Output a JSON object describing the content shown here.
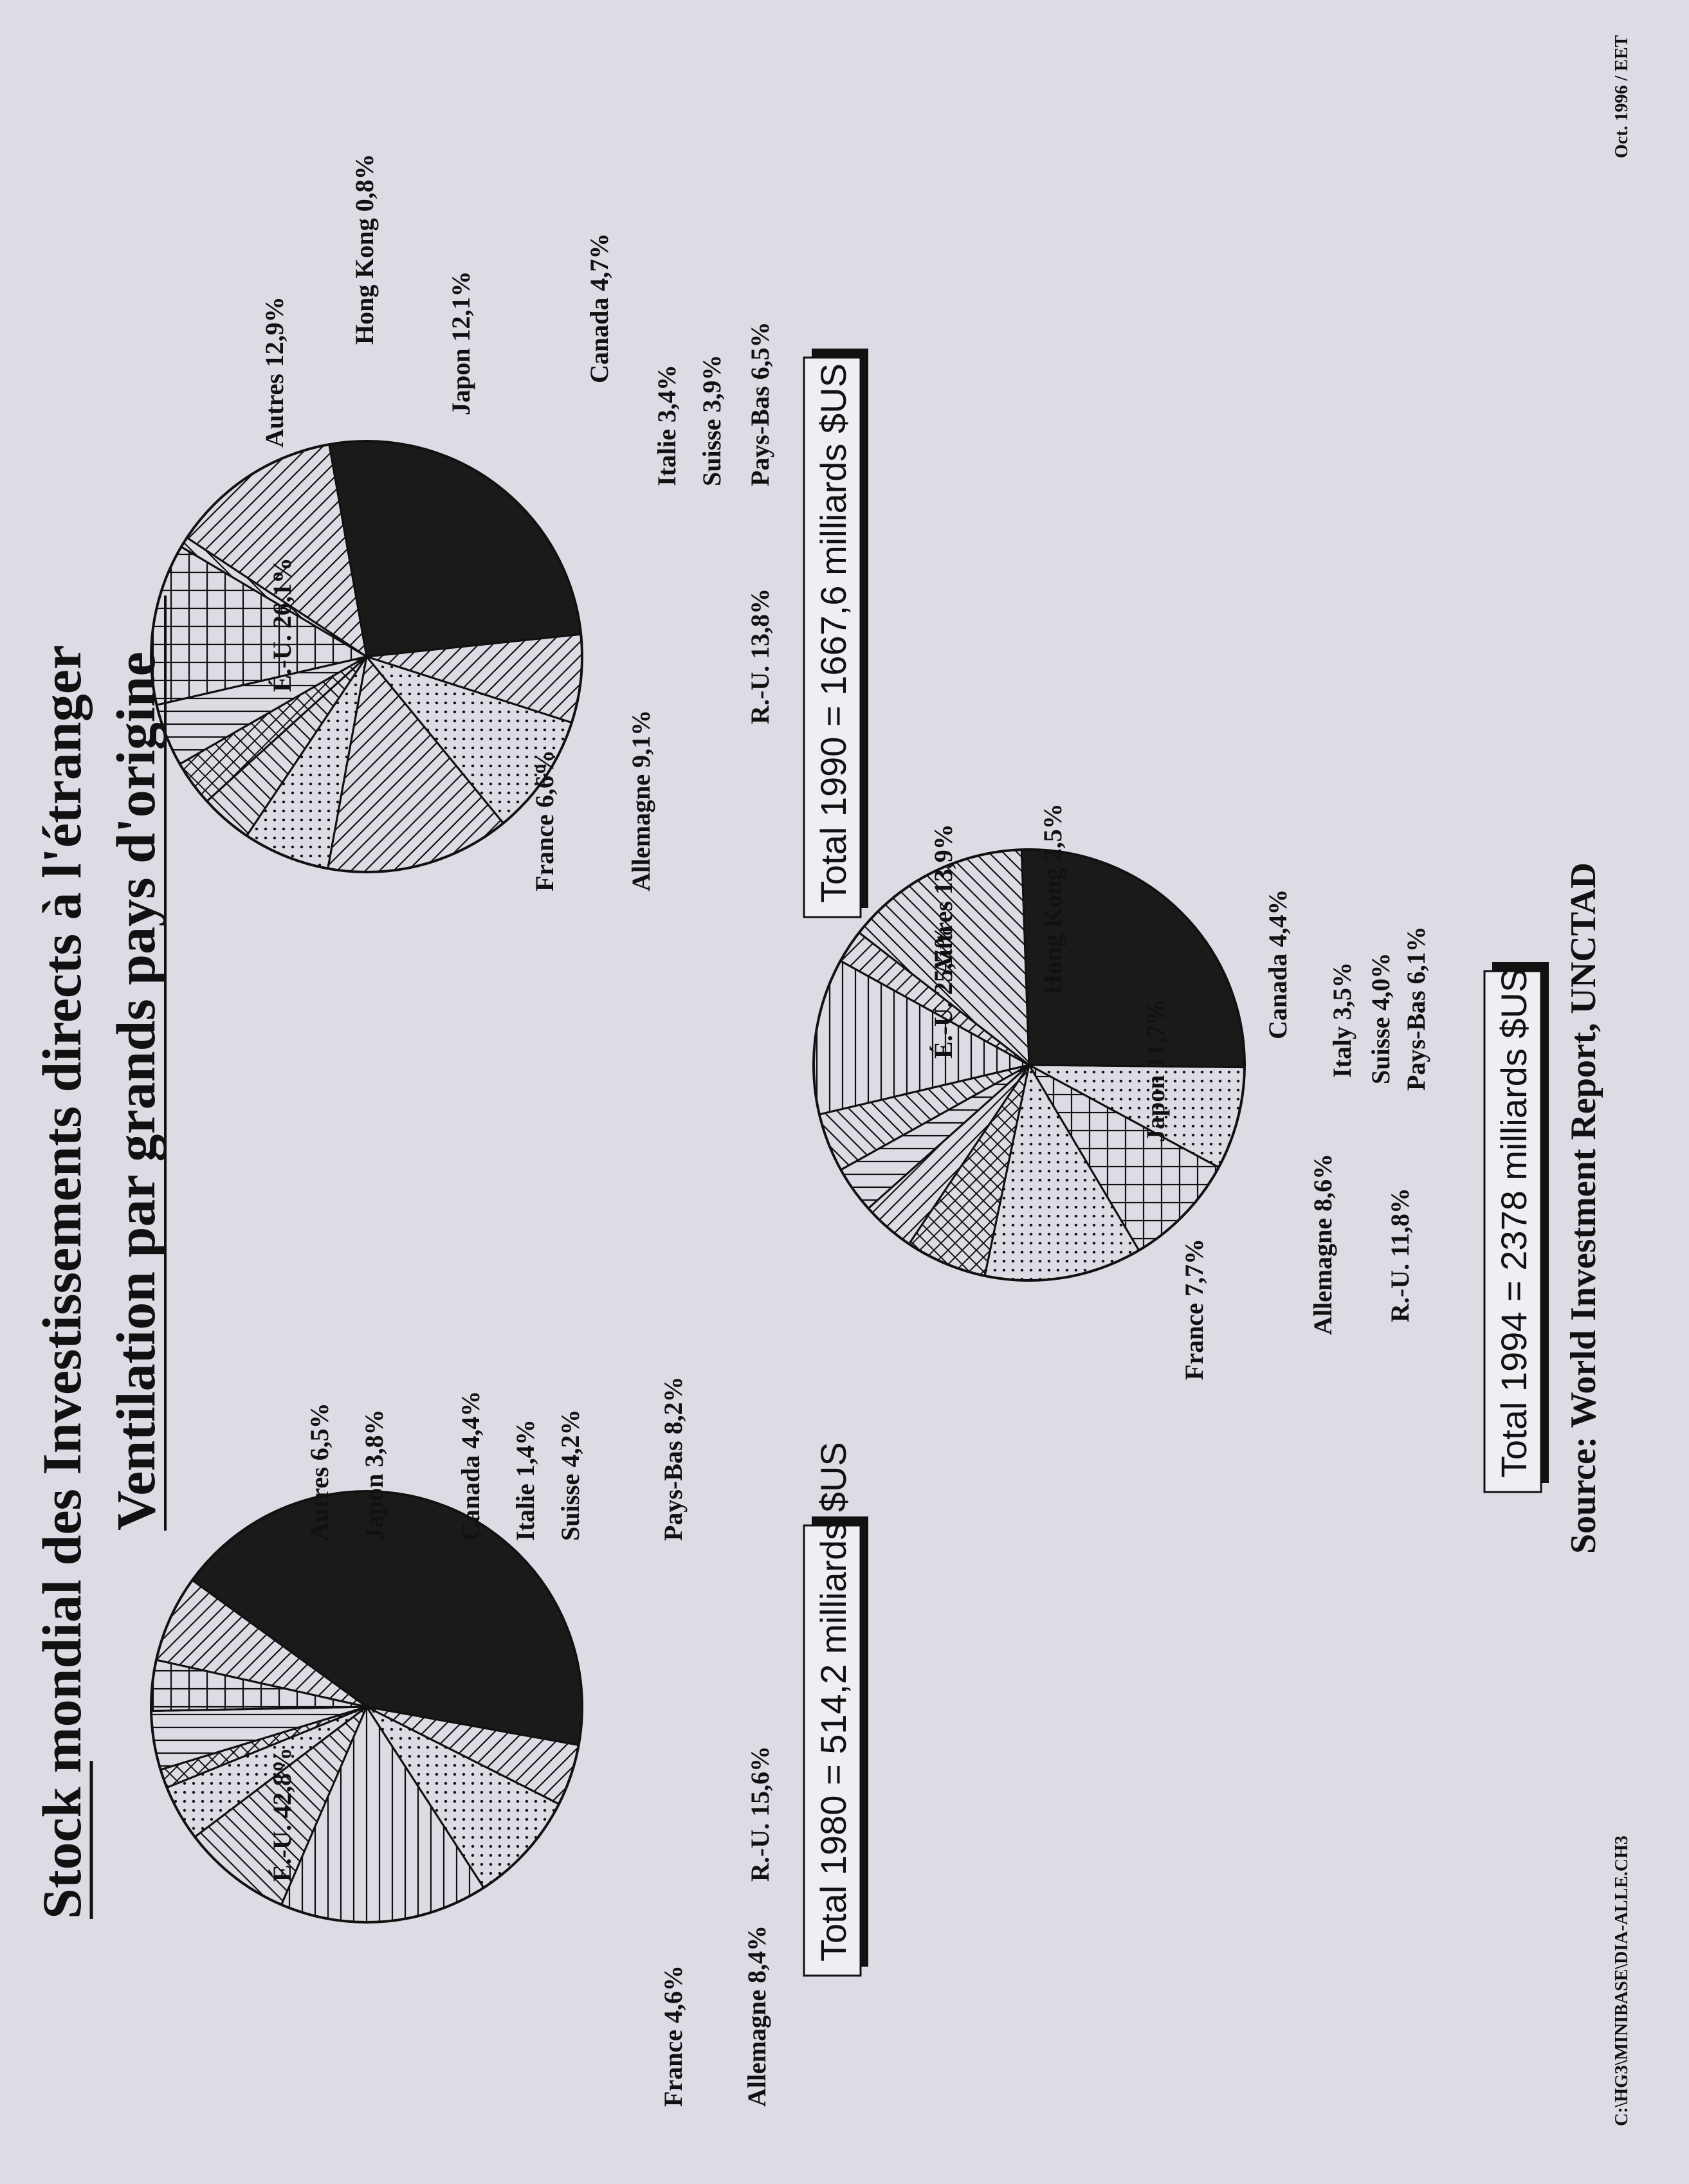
{
  "page": {
    "title": "Stock mondial des Investissements directs à l'étranger",
    "subtitle": "Ventilation par grands pays d'origine",
    "source": "Source: World Investment Report, UNCTAD",
    "footer_left": "C:\\HG3\\MINIBASE\\DIA-ALLE.CH3",
    "footer_right": "Oct. 1996 / EET"
  },
  "colors": {
    "background": "#dcdde4",
    "ink": "#111111",
    "solid": "#1a1a1a",
    "total_shadow": "#111111"
  },
  "chart_data": [
    {
      "type": "pie",
      "total_label": "Total 1980 = 514,2 milliards $US",
      "slices": [
        {
          "name": "É.-U.",
          "value": 42.8,
          "label": "É.-U.  42,8%",
          "pattern": "solid"
        },
        {
          "name": "France",
          "value": 4.6,
          "label": "France  4,6%",
          "pattern": "diag_down"
        },
        {
          "name": "Allemagne",
          "value": 8.4,
          "label": "Allemagne  8,4%",
          "pattern": "dots"
        },
        {
          "name": "R.-U.",
          "value": 15.6,
          "label": "R.-U.  15,6%",
          "pattern": "horizontal"
        },
        {
          "name": "Pays-Bas",
          "value": 8.2,
          "label": "Pays-Bas  8,2%",
          "pattern": "diag_up"
        },
        {
          "name": "Suisse",
          "value": 4.2,
          "label": "Suisse  4,2%",
          "pattern": "dots"
        },
        {
          "name": "Italie",
          "value": 1.4,
          "label": "Italie  1,4%",
          "pattern": "crosshatch"
        },
        {
          "name": "Canada",
          "value": 4.4,
          "label": "Canada  4,4%",
          "pattern": "vertical"
        },
        {
          "name": "Japon",
          "value": 3.8,
          "label": "Japon  3,8%",
          "pattern": "grid"
        },
        {
          "name": "Autres",
          "value": 6.5,
          "label": "Autres  6,5%",
          "pattern": "diag_down"
        }
      ]
    },
    {
      "type": "pie",
      "total_label": "Total 1990 = 1667,6 milliards $US",
      "slices": [
        {
          "name": "É.-U.",
          "value": 26.1,
          "label": "É.-U.  26,1%",
          "pattern": "solid"
        },
        {
          "name": "France",
          "value": 6.6,
          "label": "France  6,6%",
          "pattern": "diag_down"
        },
        {
          "name": "Allemagne",
          "value": 9.1,
          "label": "Allemagne  9,1%",
          "pattern": "dots"
        },
        {
          "name": "R.-U.",
          "value": 13.8,
          "label": "R.-U.  13,8%",
          "pattern": "diag_down"
        },
        {
          "name": "Pays-Bas",
          "value": 6.5,
          "label": "Pays-Bas  6,5%",
          "pattern": "dots"
        },
        {
          "name": "Suisse",
          "value": 3.9,
          "label": "Suisse  3,9%",
          "pattern": "diag_up"
        },
        {
          "name": "Italie",
          "value": 3.4,
          "label": "Italie  3,4%",
          "pattern": "crosshatch"
        },
        {
          "name": "Canada",
          "value": 4.7,
          "label": "Canada  4,7%",
          "pattern": "vertical"
        },
        {
          "name": "Japon",
          "value": 12.1,
          "label": "Japon  12,1%",
          "pattern": "grid"
        },
        {
          "name": "Hong Kong",
          "value": 0.8,
          "label": "Hong Kong  0,8%",
          "pattern": "diag_up"
        },
        {
          "name": "Autres",
          "value": 12.9,
          "label": "Autres  12,9%",
          "pattern": "diag_down"
        }
      ]
    },
    {
      "type": "pie",
      "total_label": "Total 1994 = 2378 milliards $US",
      "slices": [
        {
          "name": "É.-U.",
          "value": 25.7,
          "label": "É.-U.  25,7%",
          "pattern": "solid"
        },
        {
          "name": "France",
          "value": 7.7,
          "label": "France  7,7%",
          "pattern": "dots"
        },
        {
          "name": "Allemagne",
          "value": 8.6,
          "label": "Allemagne  8,6%",
          "pattern": "grid"
        },
        {
          "name": "R.-U.",
          "value": 11.8,
          "label": "R.-U.  11,8%",
          "pattern": "dots"
        },
        {
          "name": "Pays-Bas",
          "value": 6.1,
          "label": "Pays-Bas  6,1%",
          "pattern": "crosshatch"
        },
        {
          "name": "Suisse",
          "value": 4.0,
          "label": "Suisse  4,0%",
          "pattern": "diag_down"
        },
        {
          "name": "Italy",
          "value": 3.5,
          "label": "Italy  3,5%",
          "pattern": "vertical"
        },
        {
          "name": "Canada",
          "value": 4.4,
          "label": "Canada  4,4%",
          "pattern": "diag_up"
        },
        {
          "name": "Japon",
          "value": 11.7,
          "label": "Japon  11,7%",
          "pattern": "horizontal"
        },
        {
          "name": "Hong Kong",
          "value": 2.5,
          "label": "Hong Kong  2,5%",
          "pattern": "diag_down"
        },
        {
          "name": "Autres",
          "value": 13.9,
          "label": "Autres  13,9%",
          "pattern": "diag_up"
        }
      ]
    }
  ]
}
